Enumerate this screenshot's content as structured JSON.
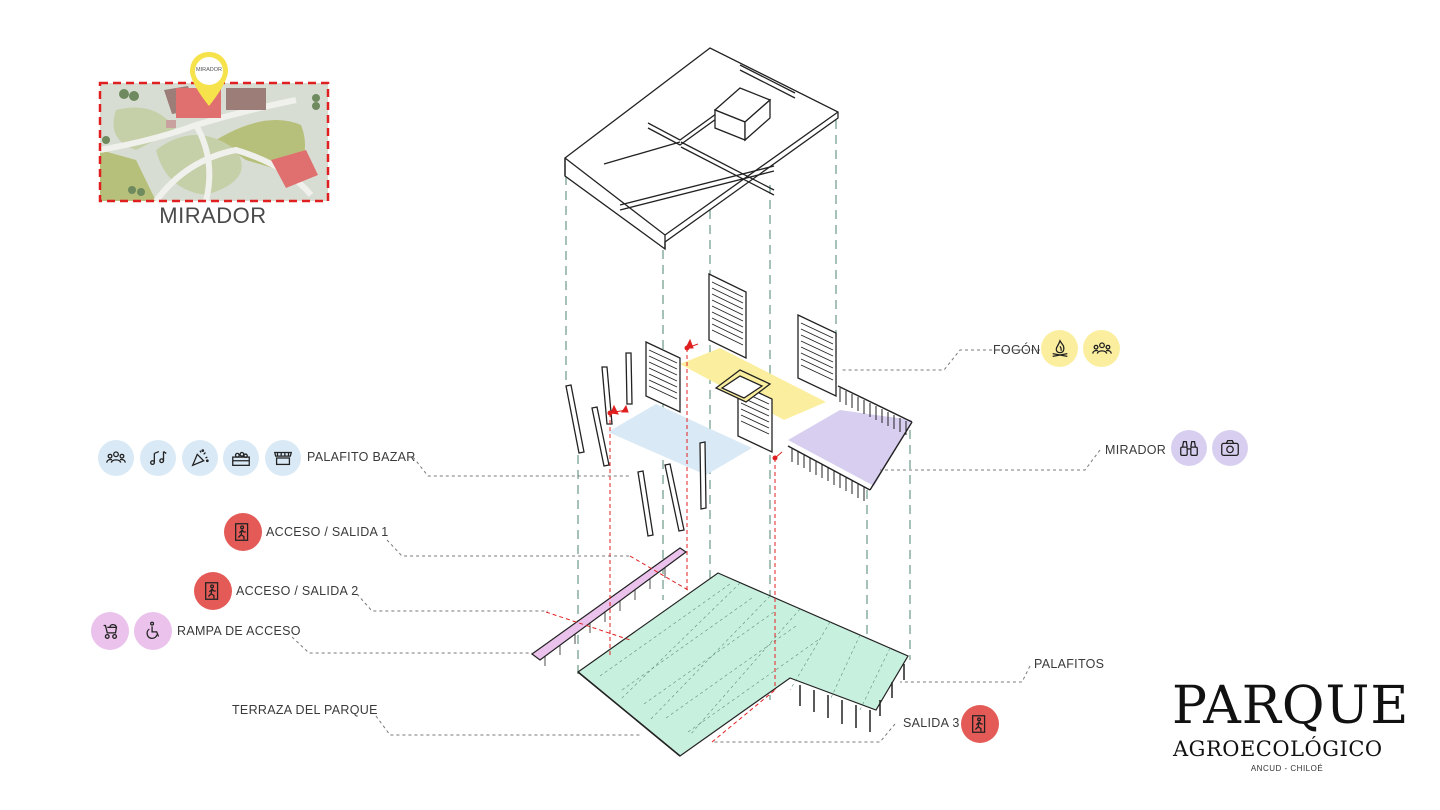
{
  "location_map": {
    "title": "MIRADOR",
    "pin_label": "MIRADOR"
  },
  "layers": {
    "roof": "roof",
    "upper_level": "upper-level",
    "base_level": "base-level"
  },
  "callouts": {
    "fogon": "FOGÓN",
    "mirador": "MIRADOR",
    "palafito_bazar": "PALAFITO BAZAR",
    "acceso_salida_1": "ACCESO / SALIDA 1",
    "acceso_salida_2": "ACCESO / SALIDA 2",
    "rampa_de_acceso": "RAMPA DE ACCESO",
    "terraza_del_parque": "TERRAZA DEL PARQUE",
    "palafitos": "PALAFITOS",
    "salida_3": "SALIDA 3"
  },
  "icons": {
    "fogon": [
      "campfire-icon",
      "people-icon"
    ],
    "mirador": [
      "binoculars-icon",
      "camera-icon"
    ],
    "bazar": [
      "people-icon",
      "music-notes-icon",
      "confetti-icon",
      "produce-crate-icon",
      "market-stall-icon"
    ],
    "exits": "emergency-exit-icon",
    "ramp": [
      "stroller-icon",
      "wheelchair-icon"
    ]
  },
  "colors": {
    "bazar": "#d9e9f5",
    "fogon": "#fbef9f",
    "mirador": "#d8cff0",
    "exit": "#e35a57",
    "ramp": "#eac2ec",
    "terrace": "#c8f0df",
    "dashed_red": "#e02020"
  },
  "logo": {
    "title": "PARQUE",
    "subtitle": "AGROECOLÓGICO",
    "place": "ANCUD - CHILOÉ"
  }
}
